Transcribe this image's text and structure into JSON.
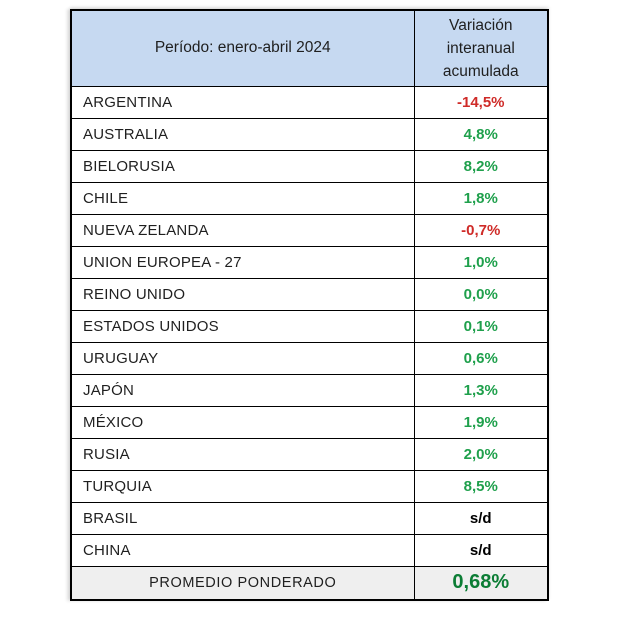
{
  "colors": {
    "header_bg": "#c6d9f1",
    "footer_bg": "#efefef",
    "positive": "#1fa04c",
    "negative": "#cf2b28",
    "neutral": "#000000",
    "footer_value": "#0c7d35",
    "border": "#000000"
  },
  "table": {
    "header": {
      "period_label": "Período: enero-abril 2024",
      "value_label": "Variación interanual acumulada"
    },
    "rows": [
      {
        "country": "ARGENTINA",
        "value": "-14,5%",
        "tone": "negative"
      },
      {
        "country": "AUSTRALIA",
        "value": "4,8%",
        "tone": "positive"
      },
      {
        "country": "BIELORUSIA",
        "value": "8,2%",
        "tone": "positive"
      },
      {
        "country": "CHILE",
        "value": "1,8%",
        "tone": "positive"
      },
      {
        "country": "NUEVA ZELANDA",
        "value": "-0,7%",
        "tone": "negative"
      },
      {
        "country": "UNION EUROPEA - 27",
        "value": "1,0%",
        "tone": "positive"
      },
      {
        "country": "REINO UNIDO",
        "value": "0,0%",
        "tone": "positive"
      },
      {
        "country": "ESTADOS UNIDOS",
        "value": "0,1%",
        "tone": "positive"
      },
      {
        "country": "URUGUAY",
        "value": "0,6%",
        "tone": "positive"
      },
      {
        "country": "JAPÓN",
        "value": "1,3%",
        "tone": "positive"
      },
      {
        "country": "MÉXICO",
        "value": "1,9%",
        "tone": "positive"
      },
      {
        "country": "RUSIA",
        "value": "2,0%",
        "tone": "positive"
      },
      {
        "country": "TURQUIA",
        "value": "8,5%",
        "tone": "positive"
      },
      {
        "country": "BRASIL",
        "value": "s/d",
        "tone": "neutral"
      },
      {
        "country": "CHINA",
        "value": "s/d",
        "tone": "neutral"
      }
    ],
    "footer": {
      "label": "PROMEDIO PONDERADO",
      "value": "0,68%",
      "tone": "positive"
    }
  },
  "chart_data": {
    "type": "table",
    "title": "Período: enero-abril 2024",
    "value_column": "Variación interanual acumulada",
    "categories": [
      "ARGENTINA",
      "AUSTRALIA",
      "BIELORUSIA",
      "CHILE",
      "NUEVA ZELANDA",
      "UNION EUROPEA - 27",
      "REINO UNIDO",
      "ESTADOS UNIDOS",
      "URUGUAY",
      "JAPÓN",
      "MÉXICO",
      "RUSIA",
      "TURQUIA",
      "BRASIL",
      "CHINA"
    ],
    "values_text": [
      "-14,5%",
      "4,8%",
      "8,2%",
      "1,8%",
      "-0,7%",
      "1,0%",
      "0,0%",
      "0,1%",
      "0,6%",
      "1,3%",
      "1,9%",
      "2,0%",
      "8,5%",
      "s/d",
      "s/d"
    ],
    "values_numeric_pct": [
      -14.5,
      4.8,
      8.2,
      1.8,
      -0.7,
      1.0,
      0.0,
      0.1,
      0.6,
      1.3,
      1.9,
      2.0,
      8.5,
      null,
      null
    ],
    "summary": {
      "label": "PROMEDIO PONDERADO",
      "value_text": "0,68%",
      "value_numeric_pct": 0.68
    }
  }
}
